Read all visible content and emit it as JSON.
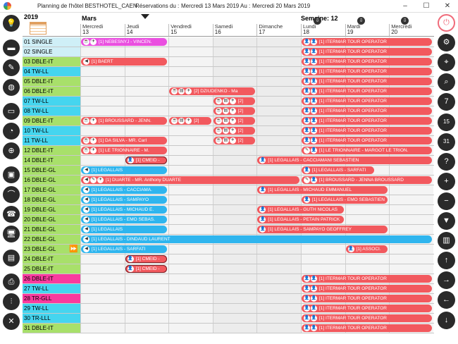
{
  "window": {
    "title": "Planning de l'hôtel  BESTHOTEL_CAEN",
    "res_label": "Réservations  du :",
    "from": "Mercredi 13 Mars 2019",
    "to_label": "Au :",
    "to": "Mercredi 20 Mars 2019",
    "minimize": "–",
    "maximize": "☐",
    "close": "✕"
  },
  "calendar": {
    "year": "2019",
    "month": "Mars",
    "week": "Semaine: 12",
    "days": [
      {
        "name": "Mercredi",
        "num": "13"
      },
      {
        "name": "Jeudi",
        "num": "14"
      },
      {
        "name": "Vendredi",
        "num": "15"
      },
      {
        "name": "Samedi",
        "num": "16"
      },
      {
        "name": "Dimanche",
        "num": "17"
      },
      {
        "name": "Lundi",
        "num": "18"
      },
      {
        "name": "Mardi",
        "num": "19"
      },
      {
        "name": "Mercredi",
        "num": "20"
      }
    ]
  },
  "rooms": [
    {
      "label": "01  SINGLE",
      "color": "#cfeff7"
    },
    {
      "label": "02  SINGLE",
      "color": "#cfeff7"
    },
    {
      "label": "03  DBLE-IT",
      "color": "#a8e06a"
    },
    {
      "label": "04  TW-LL",
      "color": "#45d5ef"
    },
    {
      "label": "05  DBLE-IT",
      "color": "#a8e06a"
    },
    {
      "label": "06  DBLE-IT",
      "color": "#a8e06a"
    },
    {
      "label": "07  TW-LL",
      "color": "#45d5ef"
    },
    {
      "label": "08  TW-LL",
      "color": "#45d5ef"
    },
    {
      "label": "09  DBLE-IT",
      "color": "#a8e06a"
    },
    {
      "label": "10  TW-LL",
      "color": "#45d5ef"
    },
    {
      "label": "11  TW-LL",
      "color": "#45d5ef"
    },
    {
      "label": "12  DBLE-IT",
      "color": "#a8e06a"
    },
    {
      "label": "14  DBLE-IT",
      "color": "#a8e06a"
    },
    {
      "label": "15  DBLE-GL",
      "color": "#a8e06a"
    },
    {
      "label": "16  DBLE-GL",
      "color": "#a8e06a"
    },
    {
      "label": "17  DBLE-GL",
      "color": "#a8e06a"
    },
    {
      "label": "18  DBLE-GL",
      "color": "#a8e06a"
    },
    {
      "label": "19  DBLE-GL",
      "color": "#a8e06a"
    },
    {
      "label": "20  DBLE-GL",
      "color": "#a8e06a"
    },
    {
      "label": "21  DBLE-GL",
      "color": "#a8e06a"
    },
    {
      "label": "22  DBLE-GL",
      "color": "#a8e06a"
    },
    {
      "label": "23  DBLE-GL",
      "color": "#a8e06a"
    },
    {
      "label": "24  DBLE-IT",
      "color": "#a8e06a"
    },
    {
      "label": "25  DBLE-IT",
      "color": "#a8e06a"
    },
    {
      "label": "26  DBLE-IT",
      "color": "#f93a9e"
    },
    {
      "label": "27  TW-LL",
      "color": "#45d5ef"
    },
    {
      "label": "28  TR-GLL",
      "color": "#f93a9e"
    },
    {
      "label": "29  TW-LL",
      "color": "#45d5ef"
    },
    {
      "label": "30  TR-LLL",
      "color": "#45d5ef"
    },
    {
      "label": "31  DBLE-IT",
      "color": "#a8e06a"
    }
  ],
  "bookings": [
    {
      "row": 0,
      "start": 0,
      "span": 2.0,
      "color": "magenta",
      "icons": [
        "☕",
        "✈"
      ],
      "text": "[1] NEBESNYJ - VINCEN."
    },
    {
      "row": 0,
      "start": 5,
      "span": 3,
      "color": "red",
      "icons": [
        "👤",
        "👤"
      ],
      "text": "[1] ITERMAR TOUR OPERATOR"
    },
    {
      "row": 1,
      "start": 5,
      "span": 3,
      "color": "red",
      "icons": [
        "👤",
        "👤"
      ],
      "text": "[1] ITERMAR TOUR OPERATOR"
    },
    {
      "row": 2,
      "start": 0,
      "span": 2.0,
      "color": "red",
      "icons": [
        "◀"
      ],
      "text": "[1] BAERT"
    },
    {
      "row": 2,
      "start": 5,
      "span": 3,
      "color": "red",
      "icons": [
        "👤",
        "👤"
      ],
      "text": "[1] ITERMAR TOUR OPERATOR"
    },
    {
      "row": 3,
      "start": 5,
      "span": 3,
      "color": "red",
      "icons": [
        "👤",
        "👤"
      ],
      "text": "[1] ITERMAR TOUR OPERATOR"
    },
    {
      "row": 4,
      "start": 5,
      "span": 3,
      "color": "red",
      "icons": [
        "👤",
        "👤"
      ],
      "text": "[1] ITERMAR TOUR OPERATOR"
    },
    {
      "row": 5,
      "start": 2,
      "span": 2.0,
      "color": "red",
      "icons": [
        "☕",
        "▤",
        "✈"
      ],
      "text": "[2] DZIUDENKO - Ma"
    },
    {
      "row": 5,
      "start": 5,
      "span": 3,
      "color": "red",
      "icons": [
        "👤",
        "👤"
      ],
      "text": "[1] ITERMAR TOUR OPERATOR"
    },
    {
      "row": 6,
      "start": 3,
      "span": 1.0,
      "color": "red",
      "icons": [
        "☕",
        "▤",
        "✈"
      ],
      "text": "[2]"
    },
    {
      "row": 6,
      "start": 5,
      "span": 3,
      "color": "red",
      "icons": [
        "👤",
        "👤"
      ],
      "text": "[1] ITERMAR TOUR OPERATOR"
    },
    {
      "row": 7,
      "start": 3,
      "span": 1.0,
      "color": "red",
      "icons": [
        "☕",
        "▤",
        "✈"
      ],
      "text": "[2]"
    },
    {
      "row": 7,
      "start": 5,
      "span": 3,
      "color": "red",
      "icons": [
        "👤",
        "👤"
      ],
      "text": "[1] ITERMAR TOUR OPERATOR"
    },
    {
      "row": 8,
      "start": 0,
      "span": 2.0,
      "color": "red",
      "icons": [
        "☕",
        "✈"
      ],
      "text": "[1] BROUSSARD - JENN."
    },
    {
      "row": 8,
      "start": 2,
      "span": 1.0,
      "color": "red",
      "icons": [
        "☕",
        "▤",
        "✈"
      ],
      "text": "[2]"
    },
    {
      "row": 8,
      "start": 3,
      "span": 1.0,
      "color": "red",
      "icons": [
        "☕",
        "▤",
        "✈"
      ],
      "text": "[2]"
    },
    {
      "row": 8,
      "start": 5,
      "span": 3,
      "color": "red",
      "icons": [
        "👤",
        "👤"
      ],
      "text": "[1] ITERMAR TOUR OPERATOR"
    },
    {
      "row": 9,
      "start": 3,
      "span": 1.0,
      "color": "red",
      "icons": [
        "☕",
        "▤",
        "✈"
      ],
      "text": "[2]"
    },
    {
      "row": 9,
      "start": 5,
      "span": 3,
      "color": "red",
      "icons": [
        "👤",
        "👤"
      ],
      "text": "[1] ITERMAR TOUR OPERATOR"
    },
    {
      "row": 10,
      "start": 0,
      "span": 2.0,
      "color": "red",
      "icons": [
        "☕",
        "✈"
      ],
      "text": "[1] DA SILVA - MR. Carl"
    },
    {
      "row": 10,
      "start": 3,
      "span": 1.0,
      "color": "red",
      "icons": [
        "☕",
        "▤",
        "✈"
      ],
      "text": "[2]"
    },
    {
      "row": 10,
      "start": 5,
      "span": 3,
      "color": "red",
      "icons": [
        "👤",
        "👤"
      ],
      "text": "[1] ITERMAR TOUR OPERATOR"
    },
    {
      "row": 11,
      "start": 0,
      "span": 2.0,
      "color": "red",
      "icons": [
        "☕",
        "✈"
      ],
      "text": "[1] LE TRIONNAIRE - M."
    },
    {
      "row": 11,
      "start": 5,
      "span": 3,
      "color": "red",
      "icons": [
        "✎",
        "👤"
      ],
      "text": "[1] LE TRIONNAIRE - MARGOT LE TRION."
    },
    {
      "row": 12,
      "start": 1,
      "span": 1.0,
      "color": "outl",
      "icons": [
        "👤"
      ],
      "text": "[1] CMEID -"
    },
    {
      "row": 12,
      "start": 4,
      "span": 4,
      "color": "red",
      "icons": [
        "👤"
      ],
      "text": "[1] LEGALLAIS - CACCIAMANI SEBASTIEN"
    },
    {
      "row": 13,
      "start": 0,
      "span": 2.0,
      "color": "blue",
      "icons": [
        "◀"
      ],
      "text": "[1] LEGALLAIS"
    },
    {
      "row": 13,
      "start": 5,
      "span": 1.7,
      "color": "red",
      "icons": [
        "👤"
      ],
      "text": "[1] LEGALLAIS - SARFATI"
    },
    {
      "row": 14,
      "start": 0,
      "span": 5.0,
      "color": "red",
      "icons": [
        "◀",
        "✎",
        "✈"
      ],
      "text": "[1] DUARTE - MR. Anthony DUARTE"
    },
    {
      "row": 14,
      "start": 5,
      "span": 3,
      "color": "red",
      "icons": [
        "✎",
        "👤"
      ],
      "text": "[1] BROUSSARD - JENNA BROUSSARD"
    },
    {
      "row": 15,
      "start": 0,
      "span": 2.0,
      "color": "blue",
      "icons": [
        "◀"
      ],
      "text": "[1] LEGALLAIS - CACCIAMA."
    },
    {
      "row": 15,
      "start": 4,
      "span": 3,
      "color": "red",
      "icons": [
        "👤"
      ],
      "text": "[1] LEGALLAIS - MICHAUD EMMANUEL"
    },
    {
      "row": 16,
      "start": 0,
      "span": 2.0,
      "color": "blue",
      "icons": [
        "◀"
      ],
      "text": "[1] LEGALLAIS - SAMPAYO"
    },
    {
      "row": 16,
      "start": 5,
      "span": 2.0,
      "color": "red",
      "icons": [
        "👤"
      ],
      "text": "[1] LEGALLAIS - EMO SEBASTIEN"
    },
    {
      "row": 17,
      "start": 0,
      "span": 2.0,
      "color": "blue",
      "icons": [
        "◀"
      ],
      "text": "[1] LEGALLAIS - MICHAUD E."
    },
    {
      "row": 17,
      "start": 4,
      "span": 2.0,
      "color": "red",
      "icons": [
        "👤"
      ],
      "text": "[1] LEGALLAIS - GUTH NICOLAS"
    },
    {
      "row": 18,
      "start": 0,
      "span": 2.0,
      "color": "blue",
      "icons": [
        "◀"
      ],
      "text": "[1] LEGALLAIS - EMO SEBAS."
    },
    {
      "row": 18,
      "start": 4,
      "span": 2.0,
      "color": "red",
      "icons": [
        "👤"
      ],
      "text": "[1] LEGALLAIS - PETAIN PATRICK"
    },
    {
      "row": 19,
      "start": 0,
      "span": 2.0,
      "color": "blue",
      "icons": [
        "◀"
      ],
      "text": "[1] LEGALLAIS"
    },
    {
      "row": 19,
      "start": 4,
      "span": 3,
      "color": "red",
      "icons": [
        "👤"
      ],
      "text": "[1] LEGALLAIS - SAMPAYO GEOFFREY"
    },
    {
      "row": 20,
      "start": 0,
      "span": 8,
      "color": "blue",
      "icons": [
        "◀"
      ],
      "text": "[1] LEGALLAIS - DINDAUD LAURENT"
    },
    {
      "row": 21,
      "start": 0,
      "span": 2.0,
      "color": "blue",
      "icons": [
        "◀"
      ],
      "text": "[1] LEGALLAIS - SARFATI"
    },
    {
      "row": 21,
      "start": 6,
      "span": 1.0,
      "color": "red",
      "icons": [
        "👤"
      ],
      "text": "[1] ASSOCI."
    },
    {
      "row": 22,
      "start": 1,
      "span": 1.0,
      "color": "outl",
      "icons": [
        "👤"
      ],
      "text": "[1] CMEID -"
    },
    {
      "row": 23,
      "start": 1,
      "span": 1.0,
      "color": "outl",
      "icons": [
        "👤"
      ],
      "text": "[1] CMEID -"
    },
    {
      "row": 24,
      "start": 5,
      "span": 3,
      "color": "red",
      "icons": [
        "👤",
        "👤"
      ],
      "text": "[1] ITERMAR TOUR OPERATOR"
    },
    {
      "row": 25,
      "start": 5,
      "span": 3,
      "color": "red",
      "icons": [
        "👤",
        "👤"
      ],
      "text": "[1] ITERMAR TOUR OPERATOR"
    },
    {
      "row": 26,
      "start": 5,
      "span": 3,
      "color": "red",
      "icons": [
        "👤",
        "👤"
      ],
      "text": "[1] ITERMAR TOUR OPERATOR"
    },
    {
      "row": 27,
      "start": 5,
      "span": 3,
      "color": "red",
      "icons": [
        "👤",
        "👤"
      ],
      "text": "[1] ITERMAR TOUR OPERATOR"
    },
    {
      "row": 28,
      "start": 5,
      "span": 3,
      "color": "red",
      "icons": [
        "👤",
        "👤"
      ],
      "text": "[1] ITERMAR TOUR OPERATOR"
    },
    {
      "row": 29,
      "start": 5,
      "span": 3,
      "color": "red",
      "icons": [
        "👤",
        "👤"
      ],
      "text": "[1] ITERMAR TOUR OPERATOR"
    }
  ],
  "left_icons": [
    {
      "name": "lightbulb-icon",
      "glyph": "💡"
    },
    {
      "name": "bed-icon",
      "glyph": "▬"
    },
    {
      "name": "cleaning-icon",
      "glyph": "✎"
    },
    {
      "name": "globe-icon",
      "glyph": "◍"
    },
    {
      "name": "tag-icon",
      "glyph": "▭"
    },
    {
      "name": "gauge-icon",
      "glyph": "◔"
    },
    {
      "name": "lifebuoy-icon",
      "glyph": "⊕"
    },
    {
      "name": "window-icon",
      "glyph": "▣"
    },
    {
      "name": "vacuum-icon",
      "glyph": "⌒"
    },
    {
      "name": "phone-icon",
      "glyph": "☎"
    },
    {
      "name": "computer-icon",
      "glyph": "🖥"
    },
    {
      "name": "cash-register-icon",
      "glyph": "▤"
    },
    {
      "name": "printer-icon",
      "glyph": "⎙"
    },
    {
      "name": "sliders-icon",
      "glyph": "⫶"
    },
    {
      "name": "tools-icon",
      "glyph": "✕"
    }
  ],
  "right_icons": [
    {
      "name": "power-icon",
      "glyph": "⏻"
    },
    {
      "name": "gear-icon",
      "glyph": "⚙"
    },
    {
      "name": "map-pin-icon",
      "glyph": "⌖"
    },
    {
      "name": "search-icon",
      "glyph": "⌕"
    },
    {
      "name": "calendar-7-icon",
      "glyph": "7"
    },
    {
      "name": "calendar-15-icon",
      "glyph": "15"
    },
    {
      "name": "calendar-31-icon",
      "glyph": "31"
    },
    {
      "name": "calendar-help-icon",
      "glyph": "?"
    },
    {
      "name": "calendar-add-icon",
      "glyph": "+"
    },
    {
      "name": "calendar-remove-icon",
      "glyph": "−"
    },
    {
      "name": "pin-icon",
      "glyph": "▼"
    },
    {
      "name": "stats-icon",
      "glyph": "▥"
    },
    {
      "name": "arrow-up-icon",
      "glyph": "↑"
    },
    {
      "name": "arrow-right-icon",
      "glyph": "→"
    },
    {
      "name": "arrow-left-icon",
      "glyph": "←"
    },
    {
      "name": "arrow-down-icon",
      "glyph": "↓"
    }
  ],
  "header_icons": [
    {
      "name": "download-icon-1",
      "glyph": "⇩"
    },
    {
      "name": "download-icon-2",
      "glyph": "⇩"
    },
    {
      "name": "download-icon-3",
      "glyph": "⇩"
    }
  ],
  "markers": {
    "fast_forward": "⏩"
  }
}
